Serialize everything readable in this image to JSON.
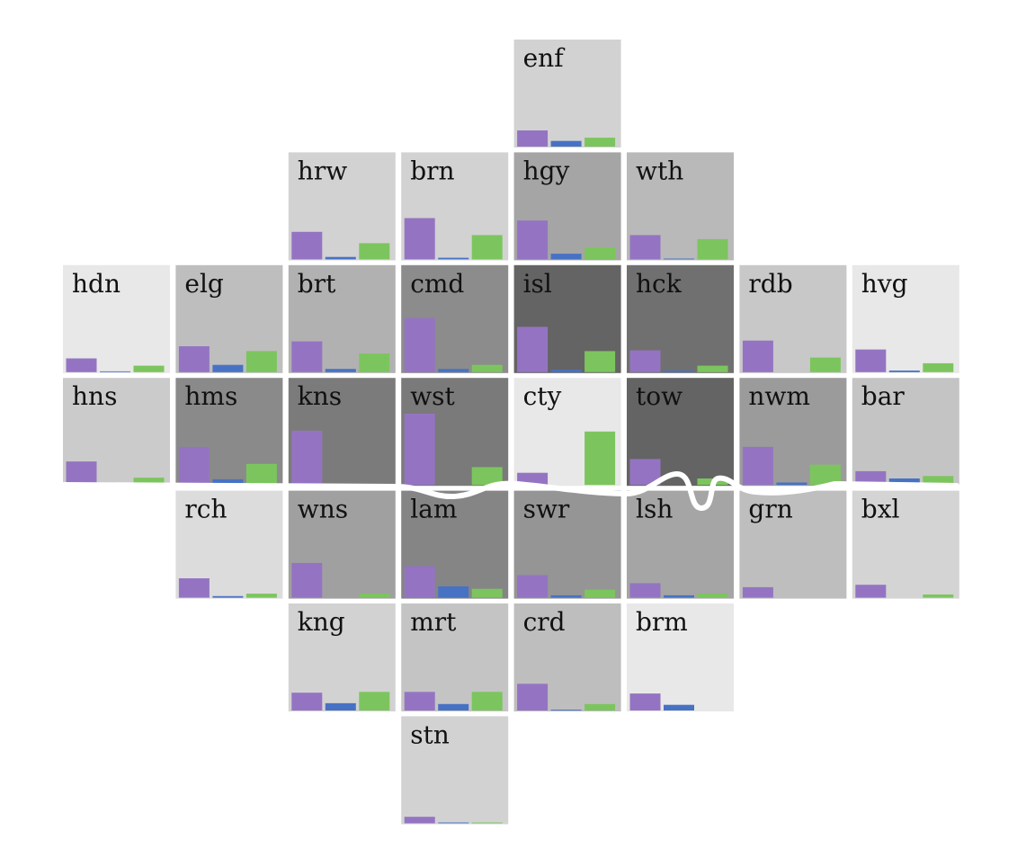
{
  "colors": {
    "purple": "#9474c2",
    "blue": "#4772c4",
    "green": "#7cc55e",
    "river": "#ffffff"
  },
  "chart_data": {
    "type": "bar",
    "layout": "tile-grid small multiples",
    "series_colors": [
      "#9474c2",
      "#4772c4",
      "#7cc55e"
    ],
    "value_range": [
      0,
      1
    ],
    "tiles": [
      {
        "code": "enf",
        "row": 0,
        "col": 4,
        "shade": "#d2d2d2",
        "values": [
          0.2,
          0.07,
          0.11
        ]
      },
      {
        "code": "hrw",
        "row": 1,
        "col": 2,
        "shade": "#d2d2d2",
        "values": [
          0.34,
          0.03,
          0.2
        ]
      },
      {
        "code": "brn",
        "row": 1,
        "col": 3,
        "shade": "#d2d2d2",
        "values": [
          0.51,
          0.02,
          0.3
        ]
      },
      {
        "code": "hgy",
        "row": 1,
        "col": 4,
        "shade": "#a5a5a5",
        "values": [
          0.48,
          0.07,
          0.15
        ]
      },
      {
        "code": "wth",
        "row": 1,
        "col": 5,
        "shade": "#b9b9b9",
        "values": [
          0.3,
          0.01,
          0.25
        ]
      },
      {
        "code": "hdn",
        "row": 2,
        "col": 0,
        "shade": "#e8e8e8",
        "values": [
          0.17,
          0.01,
          0.08
        ]
      },
      {
        "code": "elg",
        "row": 2,
        "col": 1,
        "shade": "#bebebe",
        "values": [
          0.32,
          0.09,
          0.26
        ]
      },
      {
        "code": "brt",
        "row": 2,
        "col": 2,
        "shade": "#b1b1b1",
        "values": [
          0.38,
          0.04,
          0.23
        ]
      },
      {
        "code": "cmd",
        "row": 2,
        "col": 3,
        "shade": "#8c8c8c",
        "values": [
          0.67,
          0.04,
          0.09
        ]
      },
      {
        "code": "isl",
        "row": 2,
        "col": 4,
        "shade": "#646464",
        "values": [
          0.56,
          0.03,
          0.26
        ]
      },
      {
        "code": "hck",
        "row": 2,
        "col": 5,
        "shade": "#707070",
        "values": [
          0.27,
          0.02,
          0.08
        ]
      },
      {
        "code": "rdb",
        "row": 2,
        "col": 6,
        "shade": "#c8c8c8",
        "values": [
          0.39,
          0.0,
          0.18
        ]
      },
      {
        "code": "hvg",
        "row": 2,
        "col": 7,
        "shade": "#e8e8e8",
        "values": [
          0.28,
          0.02,
          0.11
        ]
      },
      {
        "code": "hns",
        "row": 3,
        "col": 0,
        "shade": "#cbcbcb",
        "values": [
          0.29,
          0.02,
          0.09
        ]
      },
      {
        "code": "hms",
        "row": 3,
        "col": 1,
        "shade": "#8a8a8a",
        "values": [
          0.47,
          0.07,
          0.26
        ]
      },
      {
        "code": "kns",
        "row": 3,
        "col": 2,
        "shade": "#7b7b7b",
        "values": [
          0.67,
          0.0,
          0.0
        ]
      },
      {
        "code": "wst",
        "row": 3,
        "col": 3,
        "shade": "#7a7a7a",
        "values": [
          0.88,
          0.0,
          0.22
        ]
      },
      {
        "code": "cty",
        "row": 3,
        "col": 4,
        "shade": "#e8e8e8",
        "values": [
          0.15,
          0.0,
          0.66
        ]
      },
      {
        "code": "tow",
        "row": 3,
        "col": 5,
        "shade": "#646464",
        "values": [
          0.32,
          0.0,
          0.08
        ]
      },
      {
        "code": "nwm",
        "row": 3,
        "col": 6,
        "shade": "#9b9b9b",
        "values": [
          0.47,
          0.03,
          0.25
        ]
      },
      {
        "code": "bar",
        "row": 3,
        "col": 7,
        "shade": "#c4c4c4",
        "values": [
          0.17,
          0.08,
          0.11
        ]
      },
      {
        "code": "rch",
        "row": 4,
        "col": 1,
        "shade": "#dcdcdc",
        "values": [
          0.24,
          0.02,
          0.05
        ]
      },
      {
        "code": "wns",
        "row": 4,
        "col": 2,
        "shade": "#a0a0a0",
        "values": [
          0.43,
          0.0,
          0.05
        ]
      },
      {
        "code": "lam",
        "row": 4,
        "col": 3,
        "shade": "#858585",
        "values": [
          0.39,
          0.14,
          0.11
        ]
      },
      {
        "code": "swr",
        "row": 4,
        "col": 4,
        "shade": "#959595",
        "values": [
          0.28,
          0.03,
          0.1
        ]
      },
      {
        "code": "lsh",
        "row": 4,
        "col": 5,
        "shade": "#a5a5a5",
        "values": [
          0.18,
          0.03,
          0.05
        ]
      },
      {
        "code": "grn",
        "row": 4,
        "col": 6,
        "shade": "#bebebe",
        "values": [
          0.13,
          0.0,
          0.0
        ]
      },
      {
        "code": "bxl",
        "row": 4,
        "col": 7,
        "shade": "#d4d4d4",
        "values": [
          0.16,
          0.0,
          0.04
        ]
      },
      {
        "code": "kng",
        "row": 5,
        "col": 2,
        "shade": "#d2d2d2",
        "values": [
          0.22,
          0.09,
          0.23
        ]
      },
      {
        "code": "mrt",
        "row": 5,
        "col": 3,
        "shade": "#c4c4c4",
        "values": [
          0.23,
          0.08,
          0.23
        ]
      },
      {
        "code": "crd",
        "row": 5,
        "col": 4,
        "shade": "#bebebe",
        "values": [
          0.33,
          0.01,
          0.08
        ]
      },
      {
        "code": "brm",
        "row": 5,
        "col": 5,
        "shade": "#e8e8e8",
        "values": [
          0.21,
          0.07,
          0.0
        ]
      },
      {
        "code": "stn",
        "row": 6,
        "col": 3,
        "shade": "#d2d2d2",
        "values": [
          0.08,
          0.01,
          0.01
        ]
      }
    ]
  }
}
